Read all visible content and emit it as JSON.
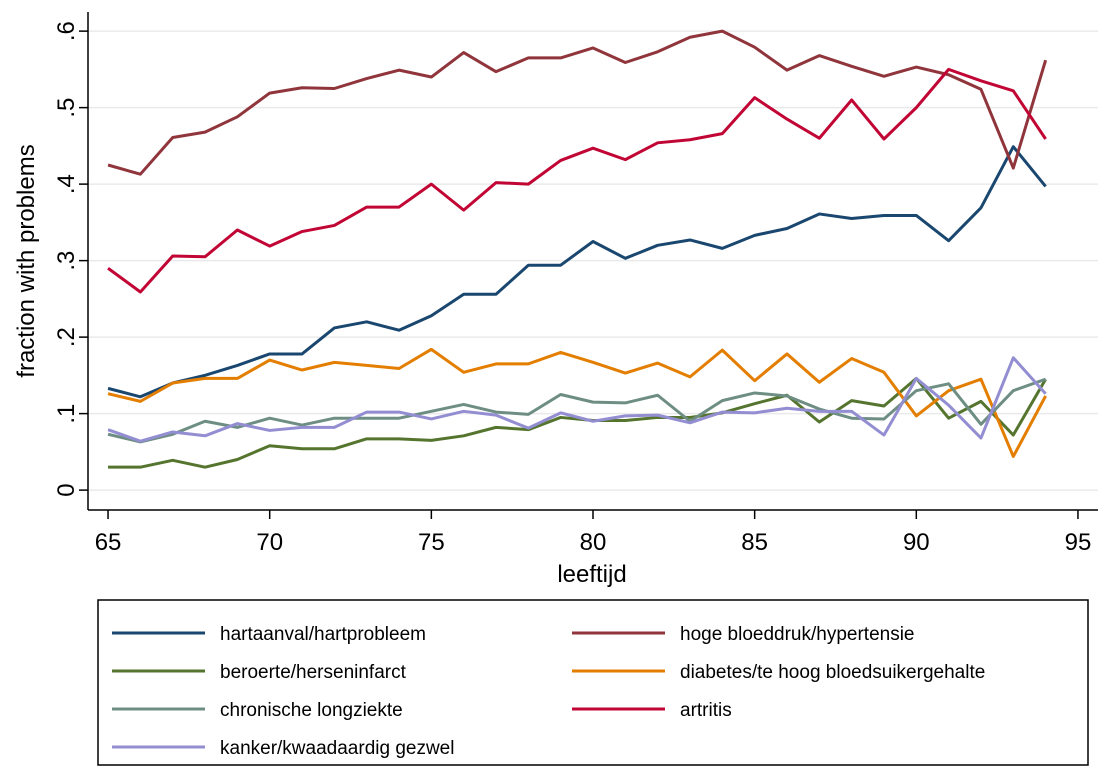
{
  "chart_data": {
    "type": "line",
    "x_label": "leeftijd",
    "y_label": "fraction with problems",
    "x": [
      65,
      66,
      67,
      68,
      69,
      70,
      71,
      72,
      73,
      74,
      75,
      76,
      77,
      78,
      79,
      80,
      81,
      82,
      83,
      84,
      85,
      86,
      87,
      88,
      89,
      90,
      91,
      92,
      93,
      94
    ],
    "xlim": [
      64.38,
      95.62
    ],
    "xticks": [
      65,
      70,
      75,
      80,
      85,
      90,
      95
    ],
    "ylim": [
      -0.026,
      0.625
    ],
    "yticks": [
      0,
      {
        "value": 0.1,
        "label": ".1"
      },
      {
        "value": 0.2,
        "label": ".2"
      },
      {
        "value": 0.3,
        "label": ".3"
      },
      {
        "value": 0.4,
        "label": ".4"
      },
      {
        "value": 0.5,
        "label": ".5"
      },
      {
        "value": 0.6,
        "label": ".6"
      }
    ],
    "grid": true,
    "legend_position": "bottom",
    "series": [
      {
        "name": "hartaanval/hartprobleem",
        "color": "#1a476f",
        "values": [
          0.133,
          0.122,
          0.14,
          0.15,
          0.163,
          0.178,
          0.178,
          0.212,
          0.22,
          0.209,
          0.228,
          0.256,
          0.256,
          0.294,
          0.294,
          0.325,
          0.303,
          0.32,
          0.327,
          0.316,
          0.333,
          0.342,
          0.361,
          0.355,
          0.359,
          0.359,
          0.326,
          0.369,
          0.449,
          0.397
        ]
      },
      {
        "name": "hoge bloeddruk/hypertensie",
        "color": "#90353b",
        "values": [
          0.425,
          0.413,
          0.461,
          0.468,
          0.488,
          0.519,
          0.526,
          0.525,
          0.538,
          0.549,
          0.54,
          0.572,
          0.547,
          0.565,
          0.565,
          0.578,
          0.559,
          0.573,
          0.592,
          0.6,
          0.579,
          0.549,
          0.568,
          0.554,
          0.541,
          0.553,
          0.543,
          0.524,
          0.421,
          0.562
        ]
      },
      {
        "name": "beroerte/herseninfarct",
        "color": "#55752f",
        "values": [
          0.03,
          0.03,
          0.039,
          0.03,
          0.04,
          0.058,
          0.054,
          0.054,
          0.067,
          0.067,
          0.065,
          0.071,
          0.082,
          0.079,
          0.095,
          0.091,
          0.091,
          0.095,
          0.095,
          0.101,
          0.113,
          0.124,
          0.089,
          0.117,
          0.11,
          0.146,
          0.094,
          0.116,
          0.072,
          0.145
        ]
      },
      {
        "name": "diabetes/te hoog bloedsuikergehalte",
        "color": "#e37e00",
        "values": [
          0.126,
          0.116,
          0.14,
          0.146,
          0.146,
          0.17,
          0.157,
          0.167,
          0.163,
          0.159,
          0.184,
          0.154,
          0.165,
          0.165,
          0.18,
          0.167,
          0.153,
          0.166,
          0.148,
          0.183,
          0.143,
          0.178,
          0.141,
          0.172,
          0.154,
          0.097,
          0.13,
          0.145,
          0.044,
          0.123
        ]
      },
      {
        "name": "chronische longziekte",
        "color": "#6e8e84",
        "values": [
          0.073,
          0.063,
          0.073,
          0.09,
          0.082,
          0.094,
          0.085,
          0.094,
          0.094,
          0.094,
          0.103,
          0.112,
          0.102,
          0.099,
          0.125,
          0.115,
          0.114,
          0.124,
          0.09,
          0.117,
          0.127,
          0.123,
          0.106,
          0.094,
          0.093,
          0.13,
          0.139,
          0.086,
          0.13,
          0.145
        ]
      },
      {
        "name": "artritis",
        "color": "#c10534",
        "values": [
          0.29,
          0.259,
          0.306,
          0.305,
          0.34,
          0.319,
          0.338,
          0.346,
          0.37,
          0.37,
          0.4,
          0.366,
          0.402,
          0.4,
          0.431,
          0.447,
          0.432,
          0.454,
          0.458,
          0.466,
          0.513,
          0.485,
          0.46,
          0.51,
          0.459,
          0.5,
          0.55,
          0.535,
          0.522,
          0.459
        ]
      },
      {
        "name": "kanker/kwaadaardig gezwel",
        "color": "#938dd2",
        "values": [
          0.079,
          0.064,
          0.076,
          0.071,
          0.087,
          0.078,
          0.082,
          0.082,
          0.102,
          0.102,
          0.093,
          0.103,
          0.098,
          0.081,
          0.101,
          0.09,
          0.097,
          0.098,
          0.088,
          0.102,
          0.101,
          0.107,
          0.103,
          0.103,
          0.072,
          0.146,
          0.111,
          0.068,
          0.173,
          0.126
        ]
      }
    ]
  }
}
